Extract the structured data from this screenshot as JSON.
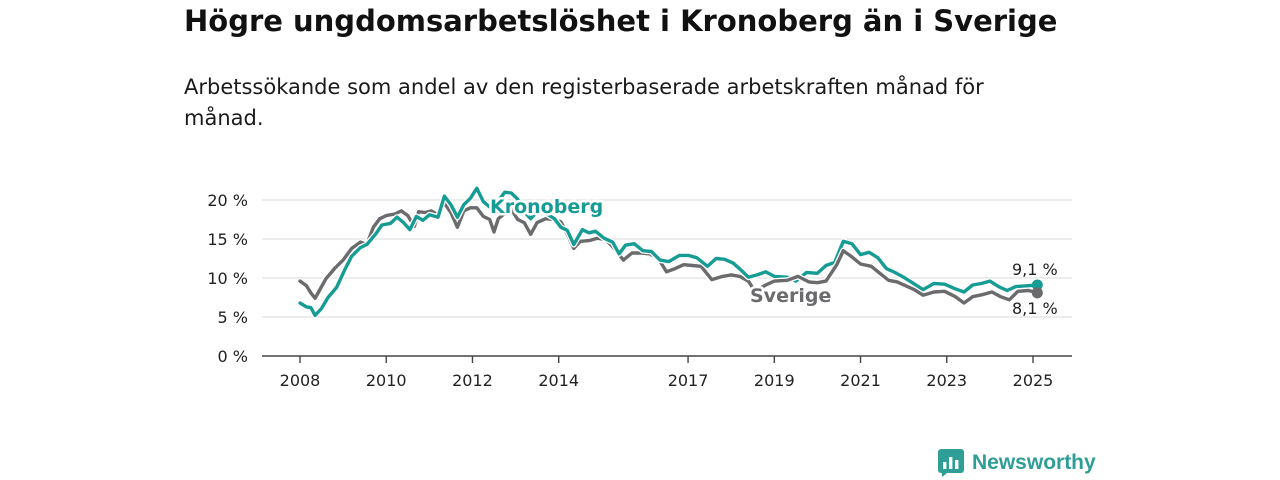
{
  "header": {
    "title": "Högre ungdomsarbetslöshet i Kronoberg än i Sverige",
    "subtitle": "Arbetssökande som andel av den registerbaserade arbetskraften månad för månad."
  },
  "brand": {
    "name": "Newsworthy",
    "icon": "newsworthy-logo-icon",
    "color": "#2f9e96"
  },
  "chart_data": {
    "type": "line",
    "ylim": [
      0,
      20
    ],
    "xlim": [
      2007.75,
      2025.4
    ],
    "y_ticks": [
      0,
      5,
      10,
      15,
      20
    ],
    "y_tick_labels": [
      "0 %",
      "5 %",
      "10 %",
      "15 %",
      "20 %"
    ],
    "x_ticks": [
      2008,
      2010,
      2012,
      2014,
      2017,
      2019,
      2021,
      2023,
      2025
    ],
    "x_tick_labels": [
      "2008",
      "2010",
      "2012",
      "2014",
      "2017",
      "2019",
      "2021",
      "2023",
      "2025"
    ],
    "grid": true,
    "series": [
      {
        "name": "Sverige",
        "color": "#6b6a6c",
        "end_label": "8,1 %",
        "points": [
          [
            2008.0,
            9.6
          ],
          [
            2008.15,
            9.0
          ],
          [
            2008.25,
            8.1
          ],
          [
            2008.35,
            7.4
          ],
          [
            2008.45,
            8.4
          ],
          [
            2008.6,
            9.9
          ],
          [
            2008.8,
            11.2
          ],
          [
            2009.0,
            12.3
          ],
          [
            2009.2,
            13.8
          ],
          [
            2009.4,
            14.6
          ],
          [
            2009.55,
            14.3
          ],
          [
            2009.7,
            16.5
          ],
          [
            2009.85,
            17.6
          ],
          [
            2010.0,
            18.0
          ],
          [
            2010.2,
            18.2
          ],
          [
            2010.35,
            18.6
          ],
          [
            2010.5,
            18.0
          ],
          [
            2010.65,
            16.6
          ],
          [
            2010.75,
            18.5
          ],
          [
            2010.9,
            18.4
          ],
          [
            2011.05,
            18.6
          ],
          [
            2011.2,
            18.1
          ],
          [
            2011.35,
            19.6
          ],
          [
            2011.5,
            18.4
          ],
          [
            2011.65,
            16.5
          ],
          [
            2011.8,
            18.6
          ],
          [
            2011.95,
            19.0
          ],
          [
            2012.1,
            19.0
          ],
          [
            2012.25,
            17.9
          ],
          [
            2012.4,
            17.5
          ],
          [
            2012.5,
            15.9
          ],
          [
            2012.6,
            17.6
          ],
          [
            2012.75,
            18.3
          ],
          [
            2012.9,
            18.8
          ],
          [
            2013.05,
            17.5
          ],
          [
            2013.2,
            17.1
          ],
          [
            2013.35,
            15.6
          ],
          [
            2013.5,
            17.1
          ],
          [
            2013.7,
            17.6
          ],
          [
            2013.9,
            17.5
          ],
          [
            2014.05,
            17.2
          ],
          [
            2014.2,
            15.6
          ],
          [
            2014.35,
            13.8
          ],
          [
            2014.5,
            14.7
          ],
          [
            2014.7,
            14.8
          ],
          [
            2014.9,
            15.1
          ],
          [
            2015.1,
            14.9
          ],
          [
            2015.3,
            13.7
          ],
          [
            2015.5,
            12.3
          ],
          [
            2015.7,
            13.2
          ],
          [
            2015.9,
            13.2
          ],
          [
            2016.1,
            13.1
          ],
          [
            2016.3,
            12.6
          ],
          [
            2016.5,
            10.8
          ],
          [
            2016.7,
            11.2
          ],
          [
            2016.9,
            11.7
          ],
          [
            2017.1,
            11.6
          ],
          [
            2017.3,
            11.5
          ],
          [
            2017.55,
            9.8
          ],
          [
            2017.8,
            10.2
          ],
          [
            2018.0,
            10.4
          ],
          [
            2018.2,
            10.2
          ],
          [
            2018.4,
            9.6
          ],
          [
            2018.55,
            8.3
          ]
        ]
      },
      {
        "name": "Kronoberg",
        "color": "#169c95",
        "end_label": "9,1 %",
        "points": [
          [
            2008.0,
            6.8
          ],
          [
            2008.15,
            6.3
          ],
          [
            2008.25,
            6.2
          ],
          [
            2008.35,
            5.2
          ],
          [
            2008.5,
            6.1
          ],
          [
            2008.65,
            7.5
          ],
          [
            2008.85,
            8.8
          ],
          [
            2009.05,
            11.2
          ],
          [
            2009.2,
            12.8
          ],
          [
            2009.4,
            13.9
          ],
          [
            2009.55,
            14.3
          ],
          [
            2009.75,
            15.6
          ],
          [
            2009.9,
            16.8
          ],
          [
            2010.1,
            17.0
          ],
          [
            2010.25,
            17.8
          ],
          [
            2010.4,
            17.1
          ],
          [
            2010.55,
            16.2
          ],
          [
            2010.7,
            17.9
          ],
          [
            2010.85,
            17.4
          ],
          [
            2011.0,
            18.1
          ],
          [
            2011.2,
            17.8
          ],
          [
            2011.35,
            20.5
          ],
          [
            2011.5,
            19.4
          ],
          [
            2011.65,
            17.8
          ],
          [
            2011.8,
            19.4
          ],
          [
            2011.95,
            20.2
          ],
          [
            2012.1,
            21.5
          ],
          [
            2012.25,
            19.8
          ],
          [
            2012.4,
            19.1
          ],
          [
            2012.6,
            19.9
          ],
          [
            2012.75,
            21.0
          ],
          [
            2012.9,
            20.9
          ],
          [
            2013.05,
            20.1
          ],
          [
            2013.2,
            18.5
          ],
          [
            2013.35,
            17.6
          ],
          [
            2013.5,
            18.5
          ],
          [
            2013.7,
            18.3
          ],
          [
            2013.9,
            17.6
          ],
          [
            2014.05,
            16.5
          ],
          [
            2014.2,
            16.1
          ],
          [
            2014.35,
            14.3
          ],
          [
            2014.55,
            16.2
          ],
          [
            2014.7,
            15.8
          ],
          [
            2014.85,
            16.0
          ],
          [
            2015.05,
            15.1
          ],
          [
            2015.25,
            14.6
          ],
          [
            2015.4,
            13.1
          ],
          [
            2015.55,
            14.2
          ],
          [
            2015.75,
            14.4
          ],
          [
            2015.95,
            13.5
          ],
          [
            2016.15,
            13.4
          ],
          [
            2016.35,
            12.3
          ],
          [
            2016.55,
            12.1
          ],
          [
            2016.8,
            12.9
          ],
          [
            2017.0,
            12.9
          ],
          [
            2017.2,
            12.6
          ],
          [
            2017.45,
            11.5
          ],
          [
            2017.65,
            12.5
          ],
          [
            2017.85,
            12.4
          ],
          [
            2018.05,
            11.9
          ],
          [
            2018.25,
            10.9
          ],
          [
            2018.4,
            10.1
          ],
          [
            2018.6,
            10.4
          ],
          [
            2018.8,
            10.8
          ],
          [
            2019.0,
            10.2
          ],
          [
            2019.3,
            10.1
          ],
          [
            2019.5,
            9.6
          ],
          [
            2019.75,
            10.7
          ],
          [
            2020.0,
            10.6
          ],
          [
            2020.2,
            11.6
          ],
          [
            2020.4,
            12.0
          ],
          [
            2020.6,
            14.7
          ],
          [
            2020.8,
            14.4
          ],
          [
            2021.0,
            13.0
          ],
          [
            2021.2,
            13.3
          ],
          [
            2021.4,
            12.6
          ],
          [
            2021.6,
            11.2
          ],
          [
            2021.8,
            10.7
          ],
          [
            2022.0,
            10.1
          ],
          [
            2022.2,
            9.4
          ],
          [
            2022.45,
            8.5
          ],
          [
            2022.7,
            9.3
          ],
          [
            2022.95,
            9.2
          ],
          [
            2023.2,
            8.6
          ],
          [
            2023.4,
            8.2
          ],
          [
            2023.6,
            9.1
          ],
          [
            2023.8,
            9.3
          ],
          [
            2024.0,
            9.6
          ],
          [
            2024.2,
            8.9
          ],
          [
            2024.4,
            8.4
          ],
          [
            2024.6,
            8.9
          ],
          [
            2024.85,
            9.0
          ],
          [
            2025.1,
            9.1
          ]
        ]
      },
      {
        "name": "Sverige",
        "color": "#6b6a6c",
        "points": [
          [
            2018.55,
            8.3
          ],
          [
            2018.8,
            9.1
          ],
          [
            2019.0,
            9.6
          ],
          [
            2019.3,
            9.7
          ],
          [
            2019.55,
            10.2
          ],
          [
            2019.8,
            9.5
          ],
          [
            2020.0,
            9.4
          ],
          [
            2020.2,
            9.6
          ],
          [
            2020.45,
            11.7
          ],
          [
            2020.6,
            13.5
          ],
          [
            2020.8,
            12.7
          ],
          [
            2021.0,
            11.8
          ],
          [
            2021.25,
            11.5
          ],
          [
            2021.45,
            10.6
          ],
          [
            2021.65,
            9.7
          ],
          [
            2021.85,
            9.5
          ],
          [
            2022.05,
            9.0
          ],
          [
            2022.25,
            8.5
          ],
          [
            2022.45,
            7.8
          ],
          [
            2022.7,
            8.2
          ],
          [
            2022.95,
            8.3
          ],
          [
            2023.2,
            7.6
          ],
          [
            2023.4,
            6.8
          ],
          [
            2023.6,
            7.6
          ],
          [
            2023.85,
            7.9
          ],
          [
            2024.05,
            8.2
          ],
          [
            2024.25,
            7.6
          ],
          [
            2024.45,
            7.2
          ],
          [
            2024.65,
            8.3
          ],
          [
            2024.9,
            8.4
          ],
          [
            2025.1,
            8.1
          ]
        ]
      }
    ],
    "annotations": [
      {
        "text": "Kronoberg",
        "series": "Kronoberg"
      },
      {
        "text": "Sverige",
        "series": "Sverige"
      }
    ]
  }
}
